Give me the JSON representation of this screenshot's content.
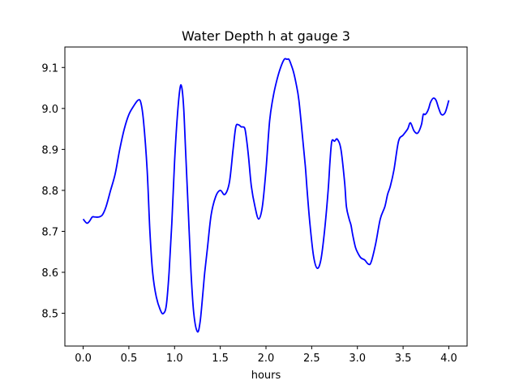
{
  "chart_data": {
    "type": "line",
    "title": "Water Depth h at gauge 3",
    "xlabel": "hours",
    "ylabel": "",
    "xlim": [
      -0.2,
      4.2
    ],
    "ylim": [
      8.42,
      9.15
    ],
    "xticks": [
      0.0,
      0.5,
      1.0,
      1.5,
      2.0,
      2.5,
      3.0,
      3.5,
      4.0
    ],
    "xtick_labels": [
      "0.0",
      "0.5",
      "1.0",
      "1.5",
      "2.0",
      "2.5",
      "3.0",
      "3.5",
      "4.0"
    ],
    "yticks": [
      8.5,
      8.6,
      8.7,
      8.8,
      8.9,
      9.0,
      9.1
    ],
    "ytick_labels": [
      "8.5",
      "8.6",
      "8.7",
      "8.8",
      "8.9",
      "9.0",
      "9.1"
    ],
    "grid": false,
    "series": [
      {
        "color": "#0000ff",
        "x": [
          0.0,
          0.04,
          0.07,
          0.1,
          0.13,
          0.17,
          0.21,
          0.25,
          0.3,
          0.35,
          0.4,
          0.45,
          0.5,
          0.55,
          0.6,
          0.63,
          0.66,
          0.7,
          0.73,
          0.76,
          0.8,
          0.85,
          0.88,
          0.91,
          0.94,
          0.97,
          1.0,
          1.03,
          1.06,
          1.08,
          1.1,
          1.12,
          1.15,
          1.18,
          1.21,
          1.25,
          1.28,
          1.31,
          1.33,
          1.36,
          1.4,
          1.45,
          1.5,
          1.55,
          1.6,
          1.64,
          1.67,
          1.7,
          1.73,
          1.75,
          1.77,
          1.79,
          1.81,
          1.84,
          1.88,
          1.92,
          1.96,
          2.0,
          2.04,
          2.08,
          2.12,
          2.16,
          2.2,
          2.23,
          2.25,
          2.27,
          2.3,
          2.33,
          2.36,
          2.4,
          2.43,
          2.45,
          2.48,
          2.52,
          2.56,
          2.6,
          2.64,
          2.68,
          2.7,
          2.72,
          2.75,
          2.78,
          2.82,
          2.86,
          2.88,
          2.91,
          2.93,
          2.95,
          2.98,
          3.01,
          3.04,
          3.08,
          3.12,
          3.15,
          3.2,
          3.25,
          3.3,
          3.33,
          3.36,
          3.4,
          3.45,
          3.5,
          3.55,
          3.58,
          3.62,
          3.66,
          3.7,
          3.72,
          3.74,
          3.76,
          3.78,
          3.8,
          3.83,
          3.86,
          3.89,
          3.92,
          3.96,
          4.0
        ],
        "y": [
          8.73,
          8.72,
          8.725,
          8.735,
          8.735,
          8.735,
          8.74,
          8.76,
          8.8,
          8.84,
          8.9,
          8.95,
          8.985,
          9.005,
          9.02,
          9.015,
          8.97,
          8.85,
          8.7,
          8.6,
          8.54,
          8.505,
          8.5,
          8.52,
          8.6,
          8.72,
          8.87,
          8.98,
          9.05,
          9.05,
          9.0,
          8.9,
          8.75,
          8.6,
          8.5,
          8.455,
          8.48,
          8.55,
          8.6,
          8.66,
          8.74,
          8.785,
          8.8,
          8.79,
          8.82,
          8.9,
          8.955,
          8.96,
          8.955,
          8.955,
          8.95,
          8.92,
          8.88,
          8.81,
          8.76,
          8.73,
          8.76,
          8.85,
          8.97,
          9.03,
          9.07,
          9.1,
          9.12,
          9.12,
          9.12,
          9.11,
          9.09,
          9.06,
          9.02,
          8.93,
          8.86,
          8.8,
          8.72,
          8.64,
          8.61,
          8.63,
          8.7,
          8.8,
          8.87,
          8.92,
          8.92,
          8.925,
          8.9,
          8.82,
          8.76,
          8.73,
          8.715,
          8.69,
          8.66,
          8.645,
          8.635,
          8.63,
          8.62,
          8.625,
          8.67,
          8.73,
          8.76,
          8.79,
          8.81,
          8.85,
          8.92,
          8.935,
          8.95,
          8.965,
          8.945,
          8.94,
          8.96,
          8.985,
          8.985,
          8.99,
          9.0,
          9.015,
          9.025,
          9.02,
          9.0,
          8.985,
          8.99,
          9.02
        ]
      }
    ]
  }
}
